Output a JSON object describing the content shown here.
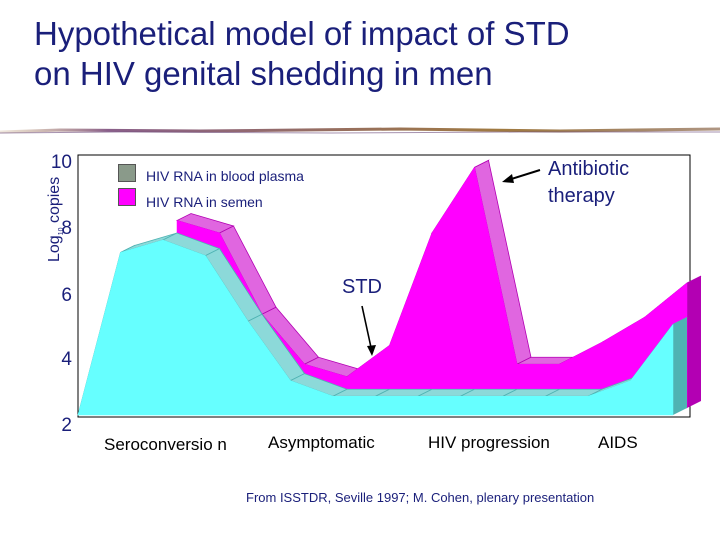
{
  "slide": {
    "title_line1": "Hypothetical model of impact of STD",
    "title_line2": "on HIV genital shedding in men",
    "source": "From ISSTDR, Seville 1997; M. Cohen, plenary presentation"
  },
  "colors": {
    "title": "#1a1f7a",
    "plasma_front": "#66ffff",
    "plasma_side": "#4fb3b3",
    "plasma_top": "#8cd9d9",
    "semen_front": "#ff00ff",
    "semen_side": "#b300b3",
    "semen_top": "#e066e0",
    "plot_bg": "#ffffff"
  },
  "chart_data": {
    "type": "area",
    "title": "Hypothetical model of impact of STD on HIV genital shedding in men",
    "ylabel_main": "Log",
    "ylabel_sub": "10",
    "ylabel_rest": " copies",
    "ylim": [
      2,
      10
    ],
    "yticks": [
      10,
      8,
      6,
      4,
      2
    ],
    "x": [
      0,
      1,
      2,
      3,
      4,
      5,
      6,
      7,
      8,
      9,
      10,
      11,
      12,
      13,
      14
    ],
    "phases": [
      "Seroconversio n",
      "Asymptomatic",
      "HIV progression",
      "AIDS"
    ],
    "legend": [
      "HIV RNA in blood plasma",
      "HIV RNA in semen"
    ],
    "series": [
      {
        "name": "HIV RNA in blood plasma",
        "values": [
          2,
          7.2,
          7.6,
          7.1,
          5.0,
          3.1,
          2.6,
          2.6,
          2.6,
          2.6,
          2.6,
          2.6,
          2.6,
          3.1,
          4.9
        ]
      },
      {
        "name": "HIV RNA in semen",
        "values": [
          null,
          null,
          8.0,
          7.6,
          5.0,
          3.4,
          3.0,
          4.0,
          7.6,
          9.7,
          3.4,
          3.4,
          4.1,
          4.9,
          6.0
        ]
      }
    ],
    "annotations": [
      {
        "text": "Antibiotic therapy",
        "line1": "Antibiotic",
        "line2": "therapy"
      },
      {
        "text": "STD"
      }
    ]
  }
}
